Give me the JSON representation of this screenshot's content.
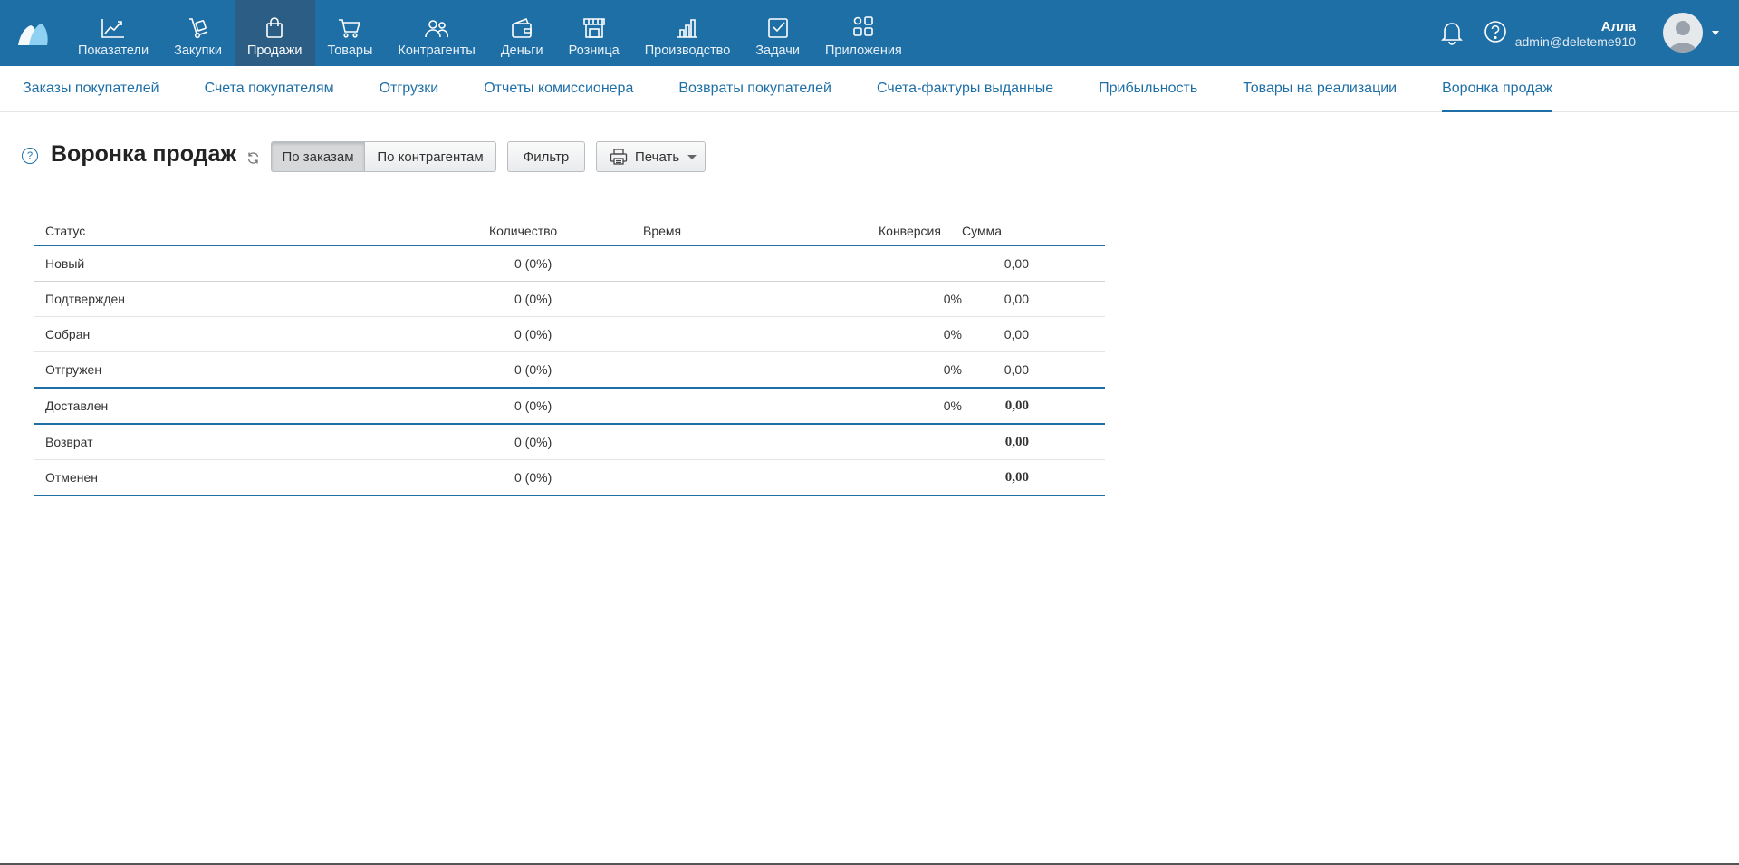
{
  "nav": {
    "items": [
      {
        "label": "Показатели",
        "icon": "chart-line-icon"
      },
      {
        "label": "Закупки",
        "icon": "dolly-icon"
      },
      {
        "label": "Продажи",
        "icon": "shopping-bag-icon"
      },
      {
        "label": "Товары",
        "icon": "cart-icon"
      },
      {
        "label": "Контрагенты",
        "icon": "users-icon"
      },
      {
        "label": "Деньги",
        "icon": "wallet-icon"
      },
      {
        "label": "Розница",
        "icon": "store-icon"
      },
      {
        "label": "Производство",
        "icon": "factory-icon"
      },
      {
        "label": "Задачи",
        "icon": "task-check-icon"
      },
      {
        "label": "Приложения",
        "icon": "apps-icon"
      }
    ],
    "active_index": 2
  },
  "user": {
    "name": "Алла",
    "email": "admin@deleteme910"
  },
  "subnav": {
    "items": [
      "Заказы покупателей",
      "Счета покупателям",
      "Отгрузки",
      "Отчеты комиссионера",
      "Возвраты покупателей",
      "Счета-фактуры выданные",
      "Прибыльность",
      "Товары на реализации",
      "Воронка продаж"
    ],
    "active_index": 8
  },
  "page": {
    "title": "Воронка продаж",
    "help_glyph": "?",
    "toggle": {
      "by_orders": "По заказам",
      "by_contractors": "По контрагентам",
      "selected": "По заказам"
    },
    "filter_label": "Фильтр",
    "print_label": "Печать"
  },
  "table": {
    "headers": {
      "status": "Статус",
      "quantity": "Количество",
      "time": "Время",
      "conversion": "Конверсия",
      "sum": "Сумма"
    },
    "rows": [
      {
        "status": "Новый",
        "quantity": "0 (0%)",
        "time": "",
        "conversion": "",
        "sum": "0,00"
      },
      {
        "status": "Подтвержден",
        "quantity": "0 (0%)",
        "time": "",
        "conversion": "0%",
        "sum": "0,00"
      },
      {
        "status": "Собран",
        "quantity": "0 (0%)",
        "time": "",
        "conversion": "0%",
        "sum": "0,00"
      },
      {
        "status": "Отгружен",
        "quantity": "0 (0%)",
        "time": "",
        "conversion": "0%",
        "sum": "0,00"
      },
      {
        "status": "Доставлен",
        "quantity": "0 (0%)",
        "time": "",
        "conversion": "0%",
        "sum": "0,00"
      },
      {
        "status": "Возврат",
        "quantity": "0 (0%)",
        "time": "",
        "conversion": "",
        "sum": "0,00"
      },
      {
        "status": "Отменен",
        "quantity": "0 (0%)",
        "time": "",
        "conversion": "",
        "sum": "0,00"
      }
    ]
  },
  "colors": {
    "brand": "#1f6fa7",
    "active_nav": "#2b5d85"
  }
}
